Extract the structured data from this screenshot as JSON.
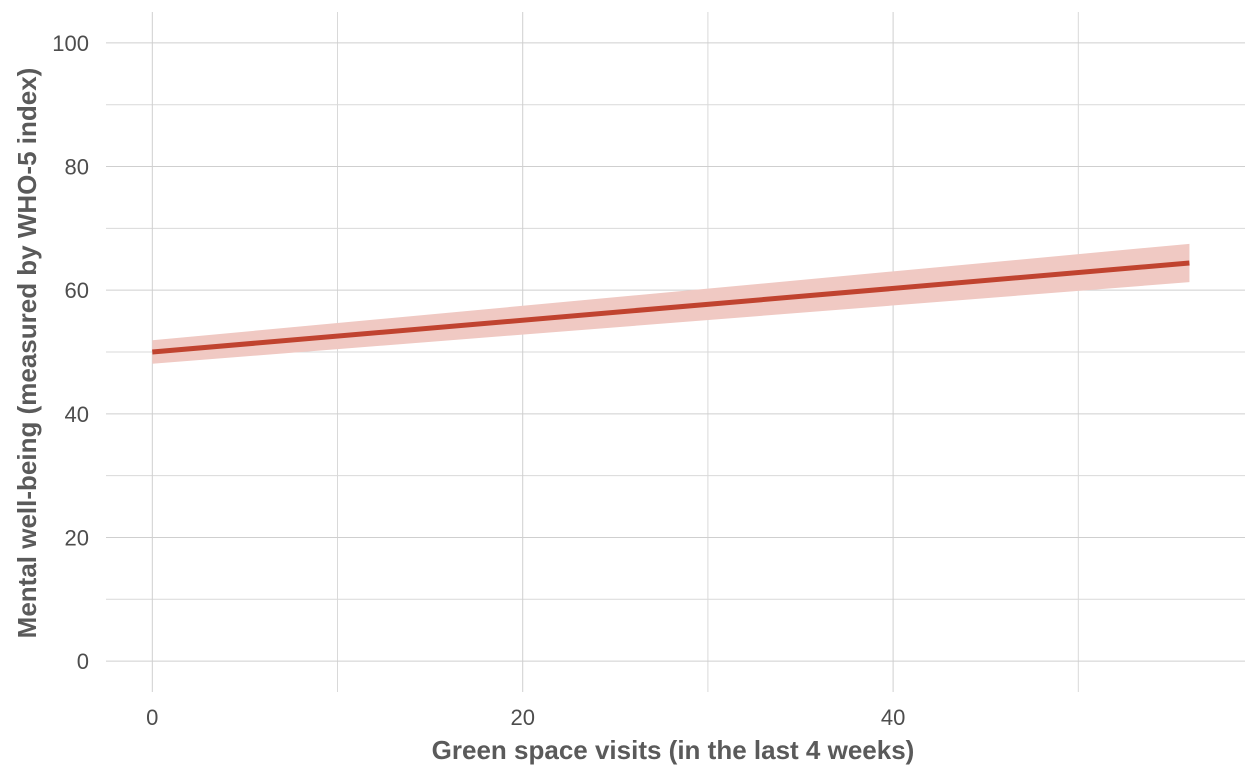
{
  "chart_data": {
    "type": "line",
    "title": "",
    "xlabel": "Green space visits (in the last 4 weeks)",
    "ylabel": "Mental well-being (measured by WHO-5 index)",
    "xlim": [
      -2.5,
      59
    ],
    "ylim": [
      -5,
      105
    ],
    "x_ticks": [
      0,
      20,
      40
    ],
    "x_tick_labels": [
      "0",
      "20",
      "40"
    ],
    "x_minor_ticks": [
      10,
      30,
      50
    ],
    "y_ticks": [
      0,
      20,
      40,
      60,
      80,
      100
    ],
    "y_tick_labels": [
      "0",
      "20",
      "40",
      "60",
      "80",
      "100"
    ],
    "y_minor_ticks": [
      10,
      30,
      50,
      70,
      90
    ],
    "grid": true,
    "legend": "none",
    "series": [
      {
        "x": [
          0,
          56
        ],
        "y": [
          50,
          64.4
        ],
        "ci_lower": [
          48.1,
          61.3
        ],
        "ci_upper": [
          51.9,
          67.5
        ],
        "line_color": "#c0432f",
        "band_color": "#f0c9c3"
      }
    ]
  }
}
